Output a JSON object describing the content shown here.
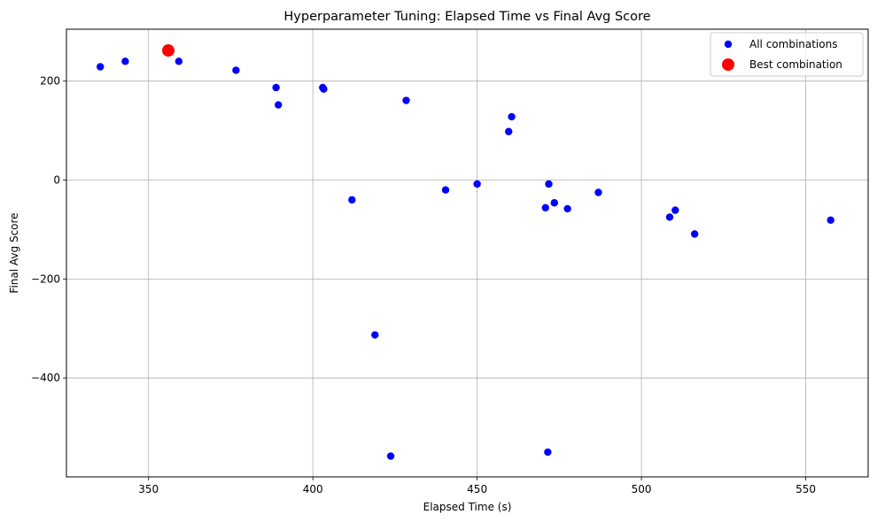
{
  "chart_data": {
    "type": "scatter",
    "title": "Hyperparameter Tuning: Elapsed Time vs Final Avg Score",
    "xlabel": "Elapsed Time (s)",
    "ylabel": "Final Avg Score",
    "xlim": [
      325,
      569
    ],
    "ylim": [
      -600,
      305
    ],
    "xticks": [
      350,
      400,
      450,
      500,
      550
    ],
    "yticks": [
      -400,
      -200,
      0,
      200
    ],
    "ytick_labels": [
      "−400",
      "−200",
      "0",
      "200"
    ],
    "xtick_labels": [
      "350",
      "400",
      "450",
      "500",
      "550"
    ],
    "grid": true,
    "legend_position": "top-right",
    "series": [
      {
        "name": "All combinations",
        "color": "#0000ff",
        "points": [
          {
            "x": 335.3,
            "y": 229
          },
          {
            "x": 342.9,
            "y": 240
          },
          {
            "x": 359.2,
            "y": 240
          },
          {
            "x": 376.6,
            "y": 222
          },
          {
            "x": 388.8,
            "y": 187
          },
          {
            "x": 389.5,
            "y": 152
          },
          {
            "x": 403.0,
            "y": 187
          },
          {
            "x": 403.3,
            "y": 184
          },
          {
            "x": 411.9,
            "y": -40
          },
          {
            "x": 418.9,
            "y": -313
          },
          {
            "x": 423.7,
            "y": -558
          },
          {
            "x": 428.4,
            "y": 161
          },
          {
            "x": 440.4,
            "y": -20
          },
          {
            "x": 450.0,
            "y": -8
          },
          {
            "x": 459.6,
            "y": 98
          },
          {
            "x": 460.5,
            "y": 128
          },
          {
            "x": 470.8,
            "y": -56
          },
          {
            "x": 471.5,
            "y": -550
          },
          {
            "x": 471.8,
            "y": -8
          },
          {
            "x": 473.5,
            "y": -46
          },
          {
            "x": 477.5,
            "y": -58
          },
          {
            "x": 486.9,
            "y": -25
          },
          {
            "x": 508.6,
            "y": -75
          },
          {
            "x": 510.3,
            "y": -61
          },
          {
            "x": 516.2,
            "y": -109
          },
          {
            "x": 557.6,
            "y": -81
          }
        ]
      },
      {
        "name": "Best combination",
        "color": "#ff0000",
        "points": [
          {
            "x": 356.0,
            "y": 262
          }
        ]
      }
    ]
  }
}
